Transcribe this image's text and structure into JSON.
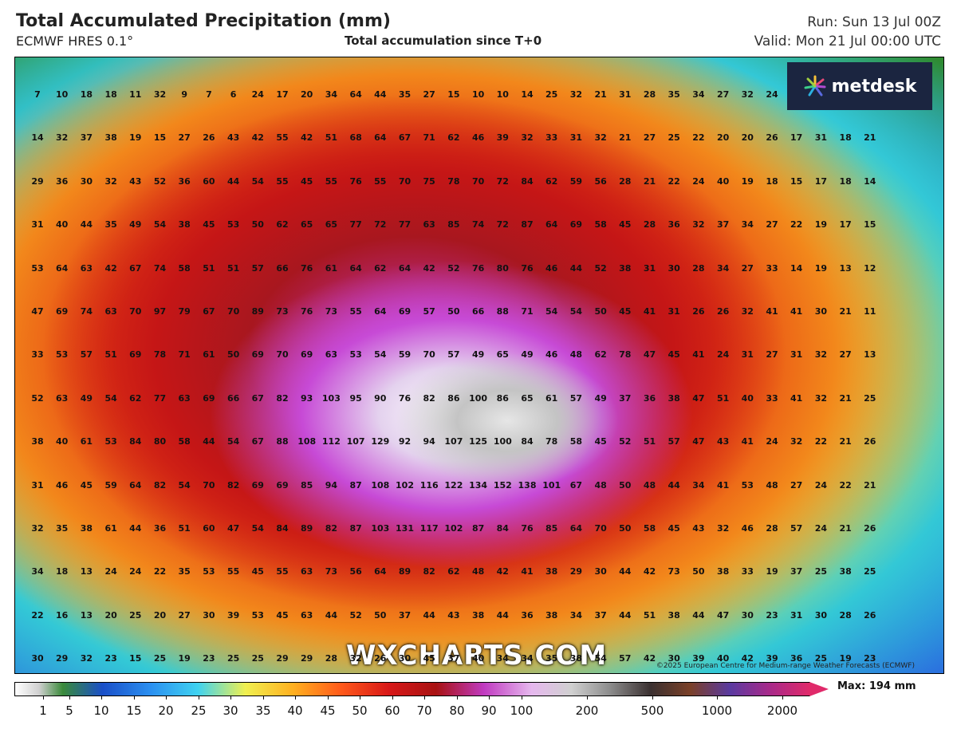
{
  "header": {
    "title": "Total Accumulated Precipitation (mm)",
    "model": "ECMWF HRES 0.1°",
    "accumulation": "Total accumulation since T+0",
    "run": "Run: Sun 13 Jul 00Z",
    "valid": "Valid: Mon 21 Jul 00:00 UTC"
  },
  "logo": {
    "text": "metdesk"
  },
  "watermark": "WXCHARTS.COM",
  "copyright": "©2025 European Centre for Medium-range Weather Forecasts (ECMWF)",
  "legend": {
    "max_label": "Max: 194 mm",
    "ticks": [
      "1",
      "5",
      "10",
      "15",
      "20",
      "25",
      "30",
      "35",
      "40",
      "45",
      "50",
      "60",
      "70",
      "80",
      "90",
      "100",
      "200",
      "500",
      "1000",
      "2000"
    ]
  },
  "grid_values": [
    [
      "7",
      "10",
      "18",
      "18",
      "11",
      "32",
      "9",
      "7",
      "6",
      "24",
      "17",
      "20",
      "34",
      "64",
      "44",
      "35",
      "27",
      "15",
      "10",
      "10",
      "14",
      "25",
      "32",
      "21",
      "31",
      "28",
      "35",
      "34",
      "27",
      "32",
      "24"
    ],
    [
      "14",
      "32",
      "37",
      "38",
      "19",
      "15",
      "27",
      "26",
      "43",
      "42",
      "55",
      "42",
      "51",
      "68",
      "64",
      "67",
      "71",
      "62",
      "46",
      "39",
      "32",
      "33",
      "31",
      "32",
      "21",
      "27",
      "25",
      "22",
      "20",
      "20",
      "26",
      "17",
      "31",
      "18",
      "21"
    ],
    [
      "29",
      "36",
      "30",
      "32",
      "43",
      "52",
      "36",
      "60",
      "44",
      "54",
      "55",
      "45",
      "55",
      "76",
      "55",
      "70",
      "75",
      "78",
      "70",
      "72",
      "84",
      "62",
      "59",
      "56",
      "28",
      "21",
      "22",
      "24",
      "40",
      "19",
      "18",
      "15",
      "17",
      "18",
      "14"
    ],
    [
      "31",
      "40",
      "44",
      "35",
      "49",
      "54",
      "38",
      "45",
      "53",
      "50",
      "62",
      "65",
      "65",
      "77",
      "72",
      "77",
      "63",
      "85",
      "74",
      "72",
      "87",
      "64",
      "69",
      "58",
      "45",
      "28",
      "36",
      "32",
      "37",
      "34",
      "27",
      "22",
      "19",
      "17",
      "15"
    ],
    [
      "53",
      "64",
      "63",
      "42",
      "67",
      "74",
      "58",
      "51",
      "51",
      "57",
      "66",
      "76",
      "61",
      "64",
      "62",
      "64",
      "42",
      "52",
      "76",
      "80",
      "76",
      "46",
      "44",
      "52",
      "38",
      "31",
      "30",
      "28",
      "34",
      "27",
      "33",
      "14",
      "19",
      "13",
      "12"
    ],
    [
      "47",
      "69",
      "74",
      "63",
      "70",
      "97",
      "79",
      "67",
      "70",
      "89",
      "73",
      "76",
      "73",
      "55",
      "64",
      "69",
      "57",
      "50",
      "66",
      "88",
      "71",
      "54",
      "54",
      "50",
      "45",
      "41",
      "31",
      "26",
      "26",
      "32",
      "41",
      "41",
      "30",
      "21",
      "11"
    ],
    [
      "33",
      "53",
      "57",
      "51",
      "69",
      "78",
      "71",
      "61",
      "50",
      "69",
      "70",
      "69",
      "63",
      "53",
      "54",
      "59",
      "70",
      "57",
      "49",
      "65",
      "49",
      "46",
      "48",
      "62",
      "78",
      "47",
      "45",
      "41",
      "24",
      "31",
      "27",
      "31",
      "32",
      "27",
      "13"
    ],
    [
      "52",
      "63",
      "49",
      "54",
      "62",
      "77",
      "63",
      "69",
      "66",
      "67",
      "82",
      "93",
      "103",
      "95",
      "90",
      "76",
      "82",
      "86",
      "100",
      "86",
      "65",
      "61",
      "57",
      "49",
      "37",
      "36",
      "38",
      "47",
      "51",
      "40",
      "33",
      "41",
      "32",
      "21",
      "25"
    ],
    [
      "38",
      "40",
      "61",
      "53",
      "84",
      "80",
      "58",
      "44",
      "54",
      "67",
      "88",
      "108",
      "112",
      "107",
      "129",
      "92",
      "94",
      "107",
      "125",
      "100",
      "84",
      "78",
      "58",
      "45",
      "52",
      "51",
      "57",
      "47",
      "43",
      "41",
      "24",
      "32",
      "22",
      "21",
      "26"
    ],
    [
      "31",
      "46",
      "45",
      "59",
      "64",
      "82",
      "54",
      "70",
      "82",
      "69",
      "69",
      "85",
      "94",
      "87",
      "108",
      "102",
      "116",
      "122",
      "134",
      "152",
      "138",
      "101",
      "67",
      "48",
      "50",
      "48",
      "44",
      "34",
      "41",
      "53",
      "48",
      "27",
      "24",
      "22",
      "21"
    ],
    [
      "32",
      "35",
      "38",
      "61",
      "44",
      "36",
      "51",
      "60",
      "47",
      "54",
      "84",
      "89",
      "82",
      "87",
      "103",
      "131",
      "117",
      "102",
      "87",
      "84",
      "76",
      "85",
      "64",
      "70",
      "50",
      "58",
      "45",
      "43",
      "32",
      "46",
      "28",
      "57",
      "24",
      "21",
      "26"
    ],
    [
      "34",
      "18",
      "13",
      "24",
      "24",
      "22",
      "35",
      "53",
      "55",
      "45",
      "55",
      "63",
      "73",
      "56",
      "64",
      "89",
      "82",
      "62",
      "48",
      "42",
      "41",
      "38",
      "29",
      "30",
      "44",
      "42",
      "73",
      "50",
      "38",
      "33",
      "19",
      "37",
      "25",
      "38",
      "25"
    ],
    [
      "22",
      "16",
      "13",
      "20",
      "25",
      "20",
      "27",
      "30",
      "39",
      "53",
      "45",
      "63",
      "44",
      "52",
      "50",
      "37",
      "44",
      "43",
      "38",
      "44",
      "36",
      "38",
      "34",
      "37",
      "44",
      "51",
      "38",
      "44",
      "47",
      "30",
      "23",
      "31",
      "30",
      "28",
      "26"
    ],
    [
      "30",
      "29",
      "32",
      "23",
      "15",
      "25",
      "19",
      "23",
      "25",
      "25",
      "29",
      "29",
      "28",
      "32",
      "26",
      "30",
      "45",
      "37",
      "40",
      "34",
      "34",
      "35",
      "38",
      "54",
      "57",
      "42",
      "30",
      "39",
      "40",
      "42",
      "39",
      "36",
      "25",
      "19",
      "23"
    ]
  ]
}
